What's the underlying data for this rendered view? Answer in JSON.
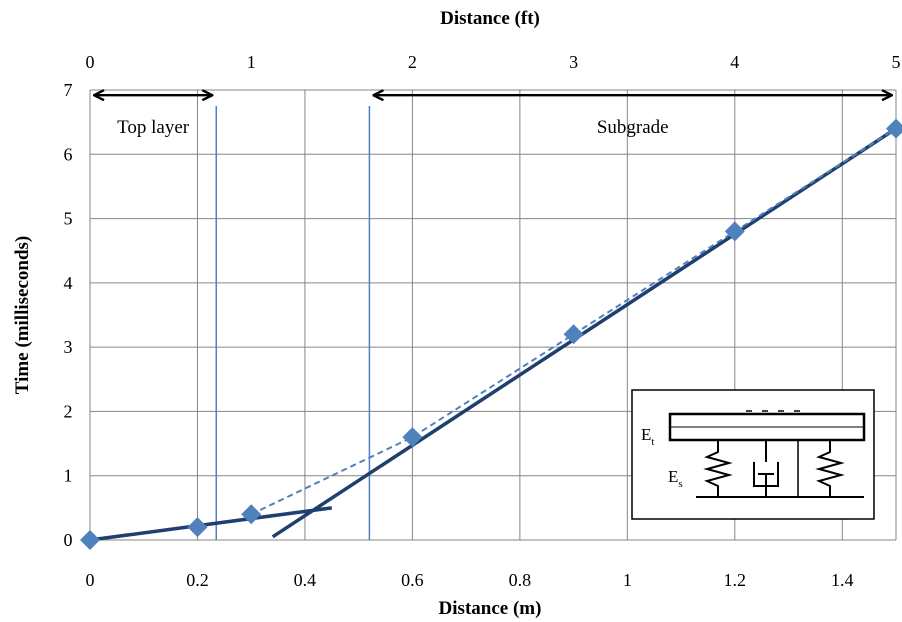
{
  "chart_data": {
    "type": "scatter",
    "title": "",
    "xlabel": "Distance (m)",
    "x2label": "Distance (ft)",
    "ylabel": "Time (milliseconds)",
    "xlim": [
      0,
      1.5
    ],
    "x2lim": [
      0,
      5
    ],
    "ylim": [
      0,
      7
    ],
    "xticks": [
      "0",
      "0.2",
      "0.4",
      "0.6",
      "0.8",
      "1",
      "1.2",
      "1.4"
    ],
    "xtick_values": [
      0,
      0.2,
      0.4,
      0.6,
      0.8,
      1.0,
      1.2,
      1.4
    ],
    "x2ticks": [
      "0",
      "1",
      "2",
      "3",
      "4",
      "5"
    ],
    "x2tick_values": [
      0,
      1,
      2,
      3,
      4,
      5
    ],
    "yticks": [
      "0",
      "1",
      "2",
      "3",
      "4",
      "5",
      "6",
      "7"
    ],
    "ytick_values": [
      0,
      1,
      2,
      3,
      4,
      5,
      6,
      7
    ],
    "grid": true,
    "series": [
      {
        "kind": "markers",
        "marker": "diamond",
        "color": "#4f81bd",
        "x": [
          0,
          0.2,
          0.3,
          0.6,
          0.9,
          1.2,
          1.5
        ],
        "y": [
          0,
          0.2,
          0.4,
          1.6,
          3.2,
          4.8,
          6.4
        ]
      },
      {
        "kind": "line",
        "style": "solid",
        "color": "#1f3f6e",
        "x": [
          0,
          0.45
        ],
        "y": [
          0,
          0.5
        ]
      },
      {
        "kind": "line",
        "style": "solid",
        "color": "#1f3f6e",
        "x": [
          0.34,
          1.5
        ],
        "y": [
          0.05,
          6.4
        ]
      },
      {
        "kind": "line",
        "style": "dashed",
        "color": "#4f81bd",
        "x": [
          0.3,
          0.45,
          0.6,
          0.75,
          0.9,
          1.05,
          1.2,
          1.35,
          1.5
        ],
        "y": [
          0.4,
          1.0,
          1.6,
          2.4,
          3.2,
          4.0,
          4.8,
          5.6,
          6.4
        ]
      }
    ],
    "boundaries": [
      {
        "x": 0.235,
        "color": "#4f81bd"
      },
      {
        "x": 0.52,
        "color": "#4f81bd"
      }
    ],
    "regions": [
      {
        "label": "Top layer",
        "x_start": 0,
        "x_end": 0.235,
        "y": 6.95
      },
      {
        "label": "Subgrade",
        "x_start": 0.52,
        "x_end": 1.5,
        "y": 6.95
      }
    ],
    "inset": {
      "top_label": "E",
      "top_label_sub": "t",
      "bottom_label": "E",
      "bottom_label_sub": "s"
    }
  }
}
